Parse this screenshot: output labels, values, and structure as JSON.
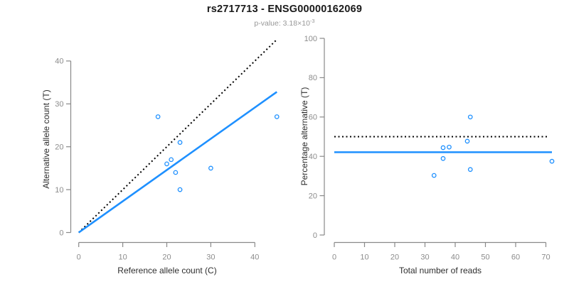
{
  "header": {
    "title": "rs2717713 - ENSG00000162069",
    "subtitle": {
      "prefix": "p-value: 3.18",
      "times": "×10",
      "exponent": "-3"
    }
  },
  "colors": {
    "accent_blue": "#1E90FF",
    "dotted_line_black": "#000000",
    "axis_gray": "#898989",
    "tick_label_gray": "#8c8c8c",
    "axis_title_dark": "#2e2e2e",
    "title_black": "#1a1a1a",
    "subtitle_gray": "#979797",
    "background": "#ffffff"
  },
  "chart_data": [
    {
      "type": "scatter",
      "panel": "allele-counts",
      "xlabel": "Reference allele count (C)",
      "ylabel": "Alternative allele count (T)",
      "xticks": [
        0,
        10,
        20,
        30,
        40
      ],
      "yticks": [
        0,
        10,
        20,
        30,
        40
      ],
      "xlim": [
        0,
        46
      ],
      "ylim": [
        0,
        46
      ],
      "grid": false,
      "point_style": "open-circle",
      "points": [
        [
          18,
          27
        ],
        [
          20,
          16
        ],
        [
          21,
          17
        ],
        [
          22,
          14
        ],
        [
          23,
          21
        ],
        [
          23,
          10
        ],
        [
          30,
          15
        ],
        [
          45,
          27
        ]
      ],
      "lines": [
        {
          "name": "expected-ratio",
          "style": "dotted",
          "color": "#000000",
          "width": 2,
          "from": [
            0,
            0
          ],
          "to": [
            45,
            45
          ]
        },
        {
          "name": "fitted-ratio",
          "style": "solid",
          "color": "#1E90FF",
          "width": 2.6,
          "from": [
            0,
            0
          ],
          "to": [
            45,
            32.8
          ]
        }
      ]
    },
    {
      "type": "scatter",
      "panel": "percentage-alternative",
      "xlabel": "Total number of reads",
      "ylabel": "Percentage alternative (T)",
      "xticks": [
        0,
        10,
        20,
        30,
        40,
        50,
        60,
        70
      ],
      "yticks": [
        0,
        20,
        40,
        60,
        80,
        100
      ],
      "xlim": [
        0,
        74
      ],
      "ylim": [
        0,
        104
      ],
      "grid": false,
      "point_style": "open-circle",
      "points": [
        [
          33,
          30.3
        ],
        [
          36,
          38.9
        ],
        [
          36,
          44.4
        ],
        [
          38,
          44.7
        ],
        [
          44,
          47.7
        ],
        [
          45,
          60
        ],
        [
          45,
          33.3
        ],
        [
          72,
          37.5
        ]
      ],
      "lines": [
        {
          "name": "expected-percentage",
          "style": "dotted",
          "color": "#000000",
          "width": 2,
          "from": [
            0,
            50
          ],
          "to": [
            70.5,
            50
          ]
        },
        {
          "name": "mean-percentage",
          "style": "solid",
          "color": "#1E90FF",
          "width": 2.6,
          "from": [
            0,
            42.1
          ],
          "to": [
            72,
            42.1
          ]
        }
      ]
    }
  ]
}
